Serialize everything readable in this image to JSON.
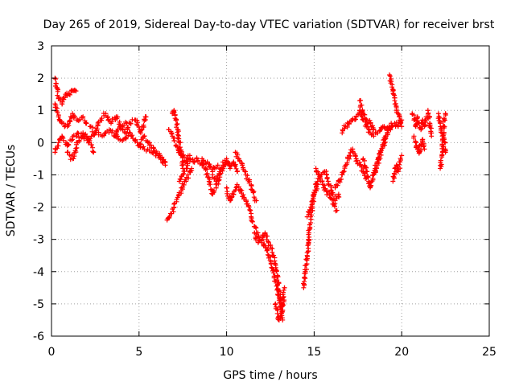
{
  "chart_data": {
    "type": "scatter",
    "title": "Day 265 of 2019, Sidereal Day-to-day VTEC variation (SDTVAR) for receiver brst",
    "xlabel": "GPS time / hours",
    "ylabel": "SDTVAR / TECUs",
    "xlim": [
      0,
      25
    ],
    "ylim": [
      -6,
      3
    ],
    "x_ticks": [
      0,
      5,
      10,
      15,
      20,
      25
    ],
    "y_ticks": [
      -6,
      -5,
      -4,
      -3,
      -2,
      -1,
      0,
      1,
      2,
      3
    ],
    "grid": true,
    "marker": "+",
    "color": "#ff0000",
    "series": [
      {
        "name": "SDTVAR",
        "segments": [
          {
            "x": [
              0.2,
              0.3,
              0.4,
              0.6,
              0.8,
              1.0,
              1.2,
              1.4
            ],
            "y": [
              2.0,
              1.7,
              1.4,
              1.2,
              1.5,
              1.5,
              1.6,
              1.6
            ]
          },
          {
            "x": [
              0.2,
              0.4,
              0.6,
              0.9,
              1.2,
              1.5,
              1.8,
              2.0
            ],
            "y": [
              1.2,
              0.8,
              0.6,
              0.5,
              0.9,
              0.7,
              0.8,
              0.6
            ]
          },
          {
            "x": [
              0.2,
              0.4,
              0.6,
              0.9,
              1.2,
              1.5,
              1.8,
              2.1,
              2.5,
              2.9,
              3.3,
              3.7,
              4.1,
              4.5,
              4.9,
              5.3,
              5.7,
              6.1,
              6.5
            ],
            "y": [
              -0.3,
              0.0,
              0.2,
              -0.1,
              0.1,
              0.3,
              0.2,
              0.1,
              0.3,
              0.2,
              0.4,
              0.2,
              0.1,
              0.3,
              0.0,
              -0.2,
              -0.3,
              -0.4,
              -0.6
            ]
          },
          {
            "x": [
              0.9,
              1.2,
              1.5,
              1.8,
              2.1,
              2.4
            ],
            "y": [
              -0.3,
              -0.5,
              0.0,
              0.3,
              0.1,
              -0.3
            ]
          },
          {
            "x": [
              2.2,
              2.5,
              2.8,
              3.1,
              3.4,
              3.7,
              4.0,
              4.3
            ],
            "y": [
              0.5,
              0.3,
              0.7,
              0.9,
              0.6,
              0.8,
              0.5,
              0.6
            ]
          },
          {
            "x": [
              3.6,
              3.9,
              4.2,
              4.5,
              4.8,
              5.1,
              5.4
            ],
            "y": [
              0.2,
              0.5,
              0.3,
              0.6,
              0.7,
              0.3,
              0.8
            ]
          },
          {
            "x": [
              5.0,
              5.3,
              5.6,
              5.9,
              6.2,
              6.5
            ],
            "y": [
              -0.1,
              0.2,
              0.0,
              -0.3,
              -0.4,
              -0.7
            ]
          },
          {
            "x": [
              6.6,
              6.8,
              7.0,
              7.2,
              7.4,
              7.6,
              7.8,
              8.0
            ],
            "y": [
              -2.4,
              -2.2,
              -2.0,
              -1.7,
              -1.5,
              -1.2,
              -1.0,
              -0.8
            ]
          },
          {
            "x": [
              6.9,
              7.0,
              7.1,
              7.2,
              7.3,
              7.4,
              7.5
            ],
            "y": [
              0.9,
              1.0,
              0.7,
              0.4,
              0.0,
              -0.4,
              -0.8
            ]
          },
          {
            "x": [
              6.7,
              6.9,
              7.1,
              7.3,
              7.5,
              7.7,
              7.9
            ],
            "y": [
              0.4,
              0.2,
              -0.1,
              -0.3,
              -0.4,
              -0.6,
              -0.4
            ]
          },
          {
            "x": [
              7.3,
              7.5,
              7.7,
              7.9,
              8.1,
              8.3,
              8.6,
              8.9,
              9.2,
              9.5
            ],
            "y": [
              -1.2,
              -1.0,
              -0.8,
              -0.5,
              -0.6,
              -0.5,
              -0.7,
              -0.6,
              -0.9,
              -0.7
            ]
          },
          {
            "x": [
              8.6,
              8.8,
              9.0,
              9.2,
              9.4,
              9.6,
              9.8,
              10.0
            ],
            "y": [
              -0.5,
              -0.8,
              -1.2,
              -1.6,
              -1.4,
              -1.0,
              -0.8,
              -0.6
            ]
          },
          {
            "x": [
              9.2,
              9.4,
              9.6,
              9.8,
              10.0,
              10.2,
              10.4,
              10.6
            ],
            "y": [
              -1.0,
              -1.2,
              -0.9,
              -0.7,
              -0.5,
              -0.8,
              -0.6,
              -0.9
            ]
          },
          {
            "x": [
              10.0,
              10.2,
              10.4,
              10.6,
              10.8,
              11.0,
              11.2,
              11.4
            ],
            "y": [
              -1.4,
              -1.8,
              -1.6,
              -1.3,
              -1.5,
              -1.7,
              -1.9,
              -2.2
            ]
          },
          {
            "x": [
              10.5,
              10.7,
              10.9,
              11.1,
              11.3,
              11.5,
              11.7
            ],
            "y": [
              -0.3,
              -0.5,
              -0.7,
              -1.0,
              -1.2,
              -1.5,
              -1.8
            ]
          },
          {
            "x": [
              11.4,
              11.6,
              11.8,
              12.0,
              12.2,
              12.4,
              12.6,
              12.8,
              13.0,
              13.2
            ],
            "y": [
              -2.3,
              -2.6,
              -2.9,
              -3.1,
              -3.2,
              -3.5,
              -3.9,
              -4.3,
              -4.8,
              -5.2
            ]
          },
          {
            "x": [
              11.6,
              11.8,
              12.0,
              12.2,
              12.4,
              12.6,
              12.8,
              13.0,
              13.2
            ],
            "y": [
              -2.8,
              -3.1,
              -3.0,
              -2.8,
              -3.1,
              -3.4,
              -3.8,
              -4.6,
              -5.5
            ]
          },
          {
            "x": [
              12.8,
              12.9,
              13.0,
              13.1,
              13.2,
              13.3
            ],
            "y": [
              -5.0,
              -5.3,
              -5.5,
              -5.3,
              -5.0,
              -4.5
            ]
          },
          {
            "x": [
              14.4,
              14.5,
              14.6,
              14.7,
              14.8,
              14.9,
              15.0,
              15.2
            ],
            "y": [
              -4.5,
              -4.0,
              -3.5,
              -2.8,
              -2.3,
              -1.9,
              -1.6,
              -1.3
            ]
          },
          {
            "x": [
              14.6,
              14.8,
              15.0,
              15.2,
              15.4,
              15.6,
              15.8,
              16.0,
              16.2,
              16.4
            ],
            "y": [
              -2.3,
              -2.0,
              -1.6,
              -1.2,
              -1.0,
              -0.9,
              -1.2,
              -1.5,
              -1.8,
              -1.6
            ]
          },
          {
            "x": [
              15.1,
              15.3,
              15.5,
              15.7,
              15.9,
              16.1,
              16.3
            ],
            "y": [
              -0.8,
              -1.0,
              -1.3,
              -1.5,
              -1.7,
              -1.9,
              -2.1
            ]
          },
          {
            "x": [
              16.2,
              16.4,
              16.6,
              16.8,
              17.0,
              17.2,
              17.4,
              17.6,
              17.8,
              18.0
            ],
            "y": [
              -1.4,
              -1.2,
              -1.0,
              -0.7,
              -0.4,
              -0.2,
              -0.5,
              -0.7,
              -0.9,
              -1.1
            ]
          },
          {
            "x": [
              16.6,
              16.8,
              17.0,
              17.2,
              17.4,
              17.6,
              17.8,
              18.0,
              18.2,
              18.4
            ],
            "y": [
              0.3,
              0.5,
              0.6,
              0.7,
              0.8,
              1.0,
              0.7,
              0.5,
              0.3,
              0.2
            ]
          },
          {
            "x": [
              17.6,
              17.8,
              18.0,
              18.2,
              18.4,
              18.6,
              18.8,
              19.0,
              19.2,
              19.4
            ],
            "y": [
              1.3,
              0.9,
              0.7,
              0.6,
              0.4,
              0.3,
              0.4,
              0.5,
              0.4,
              0.6
            ]
          },
          {
            "x": [
              17.8,
              18.0,
              18.2,
              18.4,
              18.6,
              18.8,
              19.0,
              19.2
            ],
            "y": [
              -0.5,
              -0.9,
              -1.4,
              -1.0,
              -0.7,
              -0.3,
              0.0,
              0.3
            ]
          },
          {
            "x": [
              18.4,
              18.6,
              18.8,
              19.0,
              19.2,
              19.4,
              19.6,
              19.8,
              20.0
            ],
            "y": [
              -1.0,
              -0.6,
              -0.3,
              0.1,
              0.3,
              0.5,
              0.6,
              0.5,
              0.7
            ]
          },
          {
            "x": [
              19.3,
              19.4,
              19.5,
              19.6,
              19.7,
              19.8,
              19.9,
              20.0
            ],
            "y": [
              2.1,
              1.9,
              1.6,
              1.3,
              1.1,
              0.9,
              0.7,
              0.5
            ]
          },
          {
            "x": [
              19.5,
              19.6,
              19.7,
              19.8,
              19.9,
              20.0
            ],
            "y": [
              -1.2,
              -1.0,
              -0.7,
              -0.9,
              -0.6,
              -0.4
            ]
          },
          {
            "x": [
              20.6,
              20.7,
              20.8,
              20.9,
              21.0,
              21.1,
              21.2,
              21.3,
              21.4
            ],
            "y": [
              0.9,
              0.7,
              0.5,
              0.8,
              0.6,
              0.4,
              0.7,
              0.5,
              0.8
            ]
          },
          {
            "x": [
              20.7,
              20.8,
              20.9,
              21.0,
              21.1,
              21.2,
              21.3
            ],
            "y": [
              0.2,
              0.0,
              -0.2,
              -0.3,
              -0.1,
              0.1,
              -0.2
            ]
          },
          {
            "x": [
              21.5,
              21.6,
              21.7
            ],
            "y": [
              1.0,
              0.6,
              0.2
            ]
          },
          {
            "x": [
              22.1,
              22.2,
              22.3,
              22.4,
              22.5
            ],
            "y": [
              0.9,
              0.6,
              0.3,
              0.1,
              -0.3
            ]
          },
          {
            "x": [
              22.2,
              22.3,
              22.4,
              22.5
            ],
            "y": [
              -0.8,
              -0.4,
              0.5,
              0.9
            ]
          }
        ]
      }
    ]
  }
}
